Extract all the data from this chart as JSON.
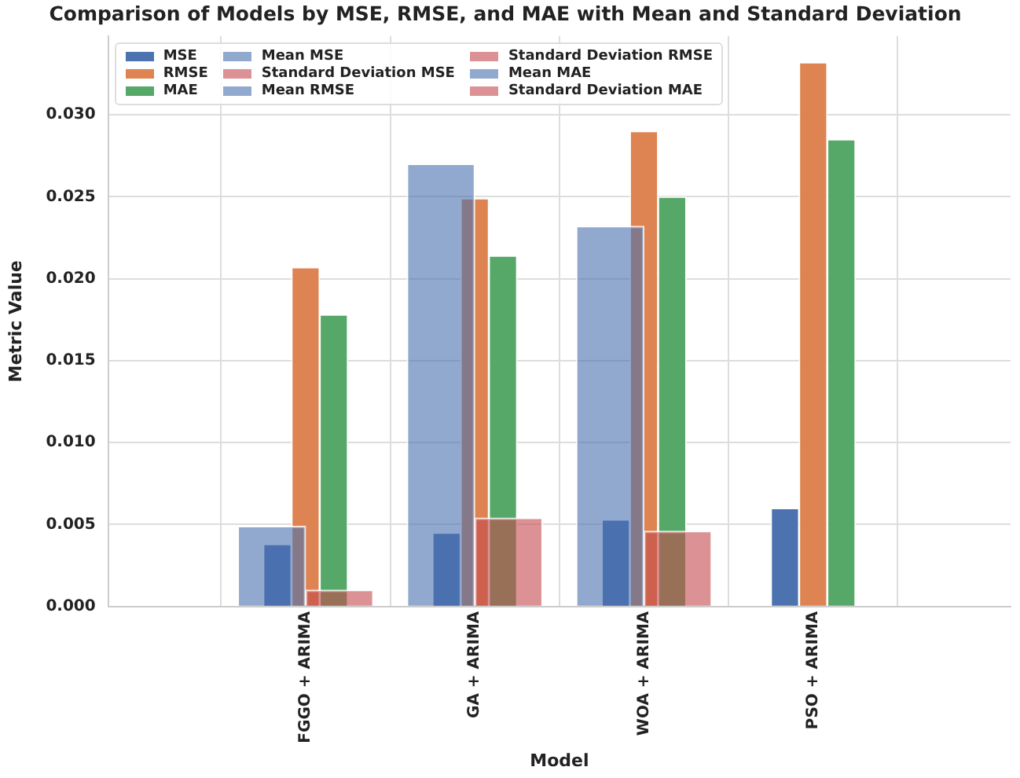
{
  "chart_data": {
    "type": "bar",
    "title": "Comparison of Models by MSE, RMSE, and MAE with Mean and Standard Deviation",
    "xlabel": "Model",
    "ylabel": "Metric Value",
    "categories": [
      "FGGO + ARIMA",
      "GA + ARIMA",
      "WOA + ARIMA",
      "PSO + ARIMA"
    ],
    "series": [
      {
        "name": "MSE",
        "color": "#4c72b0",
        "values": [
          0.0038,
          0.0045,
          0.0053,
          0.006
        ]
      },
      {
        "name": "RMSE",
        "color": "#dd8452",
        "values": [
          0.0207,
          0.0249,
          0.029,
          0.0332
        ]
      },
      {
        "name": "MAE",
        "color": "#55a868",
        "values": [
          0.0178,
          0.0214,
          0.025,
          0.0285
        ]
      },
      {
        "name": "Mean MSE",
        "color": "#92a9cf",
        "values": [
          0.0049,
          null,
          null,
          null
        ]
      },
      {
        "name": "Standard Deviation MSE",
        "color": "#dc9294",
        "values": [
          0.001,
          null,
          null,
          null
        ]
      },
      {
        "name": "Mean RMSE",
        "color": "#92a9cf",
        "values": [
          null,
          0.027,
          null,
          null
        ]
      },
      {
        "name": "Standard Deviation RMSE",
        "color": "#dc9294",
        "values": [
          null,
          0.0054,
          null,
          null
        ]
      },
      {
        "name": "Mean MAE",
        "color": "#92a9cf",
        "values": [
          null,
          null,
          0.0232,
          null
        ]
      },
      {
        "name": "Standard Deviation MAE",
        "color": "#dc9294",
        "values": [
          null,
          null,
          0.0046,
          null
        ]
      }
    ],
    "ylim": [
      0,
      0.0348
    ],
    "yticks": [
      {
        "value": 0,
        "label": "0.000"
      },
      {
        "value": 0.005,
        "label": "0.005"
      },
      {
        "value": 0.01,
        "label": "0.010"
      },
      {
        "value": 0.015,
        "label": "0.015"
      },
      {
        "value": 0.02,
        "label": "0.020"
      },
      {
        "value": 0.025,
        "label": "0.025"
      },
      {
        "value": 0.03,
        "label": "0.030"
      }
    ],
    "grid": true,
    "legend": "top left"
  }
}
